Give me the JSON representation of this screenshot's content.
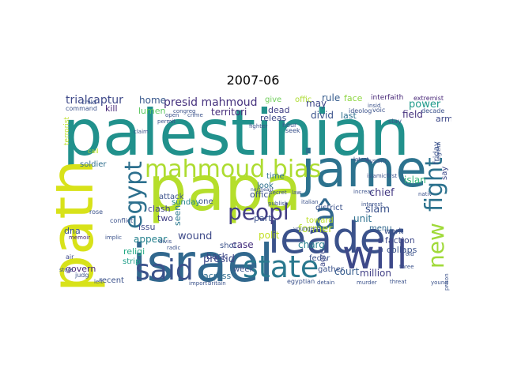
{
  "title": "2007-06",
  "words": [
    {
      "text": "palestinian",
      "color": "#21918c"
    },
    {
      "text": "papa",
      "color": "#b5de2b"
    },
    {
      "text": "jame",
      "color": "#2c728e"
    },
    {
      "text": "israel",
      "color": "#31688e"
    },
    {
      "text": "leader",
      "color": "#3b528b"
    },
    {
      "text": "path",
      "color": "#d8e219"
    },
    {
      "text": "will",
      "color": "#3e4989"
    },
    {
      "text": "state",
      "color": "#2a788e"
    },
    {
      "text": "mahmoud bias",
      "color": "#addc30"
    },
    {
      "text": "said",
      "color": "#3b528b"
    },
    {
      "text": "egypt",
      "color": "#2d708e"
    },
    {
      "text": "â",
      "color": "#31688e"
    },
    {
      "text": "fight",
      "color": "#2c728e"
    },
    {
      "text": "peopl",
      "color": "#433e85"
    },
    {
      "text": "new",
      "color": "#a0da39"
    },
    {
      "text": "presid mahmoud",
      "color": "#46327e"
    },
    {
      "text": "trialcaptur",
      "color": "#3e4989"
    },
    {
      "text": "home",
      "color": "#38588c"
    },
    {
      "text": "lumen",
      "color": "#5ec962"
    },
    {
      "text": "territori",
      "color": "#472d7b"
    },
    {
      "text": "kill",
      "color": "#482878"
    },
    {
      "text": "wound",
      "color": "#3e4a89"
    },
    {
      "text": "appear",
      "color": "#26828e"
    },
    {
      "text": "former",
      "color": "#b8de29"
    },
    {
      "text": "polit",
      "color": "#c2df23"
    },
    {
      "text": "case",
      "color": "#46307e"
    },
    {
      "text": "presid",
      "color": "#3e4989"
    },
    {
      "text": "religi",
      "color": "#22a884"
    },
    {
      "text": "strip",
      "color": "#1f9e89"
    },
    {
      "text": "unit",
      "color": "#2d708e"
    },
    {
      "text": "slam",
      "color": "#3b528b"
    },
    {
      "text": "chief",
      "color": "#443983"
    },
    {
      "text": "islan",
      "color": "#35b779"
    },
    {
      "text": "power",
      "color": "#1f9a8a"
    },
    {
      "text": "field",
      "color": "#46327e"
    },
    {
      "text": "rule",
      "color": "#365c8d"
    },
    {
      "text": "face",
      "color": "#8fd744"
    },
    {
      "text": "may",
      "color": "#3e4989"
    },
    {
      "text": "divid",
      "color": "#3b528b"
    },
    {
      "text": "last",
      "color": "#2e6e8e"
    },
    {
      "text": "dead",
      "color": "#424086"
    },
    {
      "text": "give",
      "color": "#6ece58"
    },
    {
      "text": "offic",
      "color": "#addc30"
    },
    {
      "text": "million",
      "color": "#424086"
    },
    {
      "text": "court",
      "color": "#365c8d"
    },
    {
      "text": "across",
      "color": "#2f6c8e"
    },
    {
      "text": "recent",
      "color": "#3b528b"
    },
    {
      "text": "govern",
      "color": "#482878"
    },
    {
      "text": "issu",
      "color": "#3e4989"
    },
    {
      "text": "clash",
      "color": "#414487"
    },
    {
      "text": "attack",
      "color": "#3b528b"
    },
    {
      "text": "back",
      "color": "#3e4989"
    },
    {
      "text": "week",
      "color": "#3b528b"
    },
    {
      "text": "charg",
      "color": "#277f8e"
    },
    {
      "text": "part",
      "color": "#3b528b"
    },
    {
      "text": "time",
      "color": "#2d708e"
    },
    {
      "text": "offici",
      "color": "#3b528b"
    },
    {
      "text": "toward",
      "color": "#bddf26"
    },
    {
      "text": "look",
      "color": "#2d708e"
    },
    {
      "text": "two",
      "color": "#424086"
    },
    {
      "text": "one",
      "color": "#3b528b"
    },
    {
      "text": "sunday",
      "color": "#25848e"
    },
    {
      "text": "seen",
      "color": "#2a788e"
    },
    {
      "text": "shot",
      "color": "#3b528b"
    },
    {
      "text": "dna",
      "color": "#3b528b"
    },
    {
      "text": "soldier",
      "color": "#2e6e8e"
    },
    {
      "text": "district",
      "color": "#3b528b"
    },
    {
      "text": "say",
      "color": "#3e4989"
    },
    {
      "text": "friday",
      "color": "#3b528b"
    },
    {
      "text": "faction",
      "color": "#3e4989"
    },
    {
      "text": "menu",
      "color": "#31688e"
    },
    {
      "text": "work",
      "color": "#3b528b"
    },
    {
      "text": "feder",
      "color": "#3b528b"
    },
    {
      "text": "agre",
      "color": "#3e4989"
    },
    {
      "text": "gather",
      "color": "#3b528b"
    },
    {
      "text": "releas",
      "color": "#3e4989"
    },
    {
      "text": "collaps",
      "color": "#3b528b"
    },
    {
      "text": "armi",
      "color": "#3e4989"
    },
    {
      "text": "interfaith",
      "color": "#482878"
    },
    {
      "text": "extremist",
      "color": "#482878"
    },
    {
      "text": "conflict",
      "color": "#3b528b"
    },
    {
      "text": "judg",
      "color": "#3b528b"
    },
    {
      "text": "egyptian",
      "color": "#3b528b"
    },
    {
      "text": "air",
      "color": "#3e4989"
    },
    {
      "text": "store",
      "color": "#3b528b"
    },
    {
      "text": "memoir",
      "color": "#482878"
    },
    {
      "text": "rose",
      "color": "#3b528b"
    },
    {
      "text": "call",
      "color": "#c2df23"
    },
    {
      "text": "terrorist",
      "color": "#bddf26"
    },
    {
      "text": "child",
      "color": "#3b528b"
    },
    {
      "text": "command",
      "color": "#3b528b"
    },
    {
      "text": "hour",
      "color": "#3b528b"
    },
    {
      "text": "seek",
      "color": "#3b528b"
    },
    {
      "text": "stay",
      "color": "#3b528b"
    },
    {
      "text": "decade",
      "color": "#3b528b"
    },
    {
      "text": "permit",
      "color": "#3b528b"
    },
    {
      "text": "crime",
      "color": "#3b528b"
    },
    {
      "text": "open",
      "color": "#3b528b"
    },
    {
      "text": "fighter",
      "color": "#3b528b"
    },
    {
      "text": "ideolog",
      "color": "#3b528b"
    },
    {
      "text": "voic",
      "color": "#3b528b"
    },
    {
      "text": "insid",
      "color": "#3b528b"
    },
    {
      "text": "youngest",
      "color": "#3b528b"
    },
    {
      "text": "publish",
      "color": "#3b528b"
    },
    {
      "text": "italian",
      "color": "#3b528b"
    },
    {
      "text": "law",
      "color": "#3b528b"
    },
    {
      "text": "secret",
      "color": "#3b528b"
    },
    {
      "text": "nativ",
      "color": "#3b528b"
    },
    {
      "text": "husaini",
      "color": "#3b528b"
    },
    {
      "text": "latest",
      "color": "#3b528b"
    },
    {
      "text": "interest",
      "color": "#3b528b"
    },
    {
      "text": "increas",
      "color": "#3b528b"
    },
    {
      "text": "threat",
      "color": "#3b528b"
    },
    {
      "text": "murder",
      "color": "#3b528b"
    },
    {
      "text": "import",
      "color": "#3b528b"
    },
    {
      "text": "britain",
      "color": "#3b528b"
    },
    {
      "text": "detain",
      "color": "#3b528b"
    },
    {
      "text": "three",
      "color": "#3b528b"
    },
    {
      "text": "old",
      "color": "#3b528b"
    },
    {
      "text": "islamicfirst",
      "color": "#3b528b"
    },
    {
      "text": "prison",
      "color": "#3b528b"
    },
    {
      "text": "young",
      "color": "#3b528b"
    },
    {
      "text": "legitim",
      "color": "#3b528b"
    },
    {
      "text": "northeast",
      "color": "#3b528b"
    },
    {
      "text": "radic",
      "color": "#3b528b"
    },
    {
      "text": "implic",
      "color": "#3b528b"
    },
    {
      "text": "divis",
      "color": "#3b528b"
    },
    {
      "text": "claim",
      "color": "#3b528b"
    },
    {
      "text": "congreg",
      "color": "#3b528b"
    },
    {
      "text": "left",
      "color": "#3b528b"
    }
  ]
}
